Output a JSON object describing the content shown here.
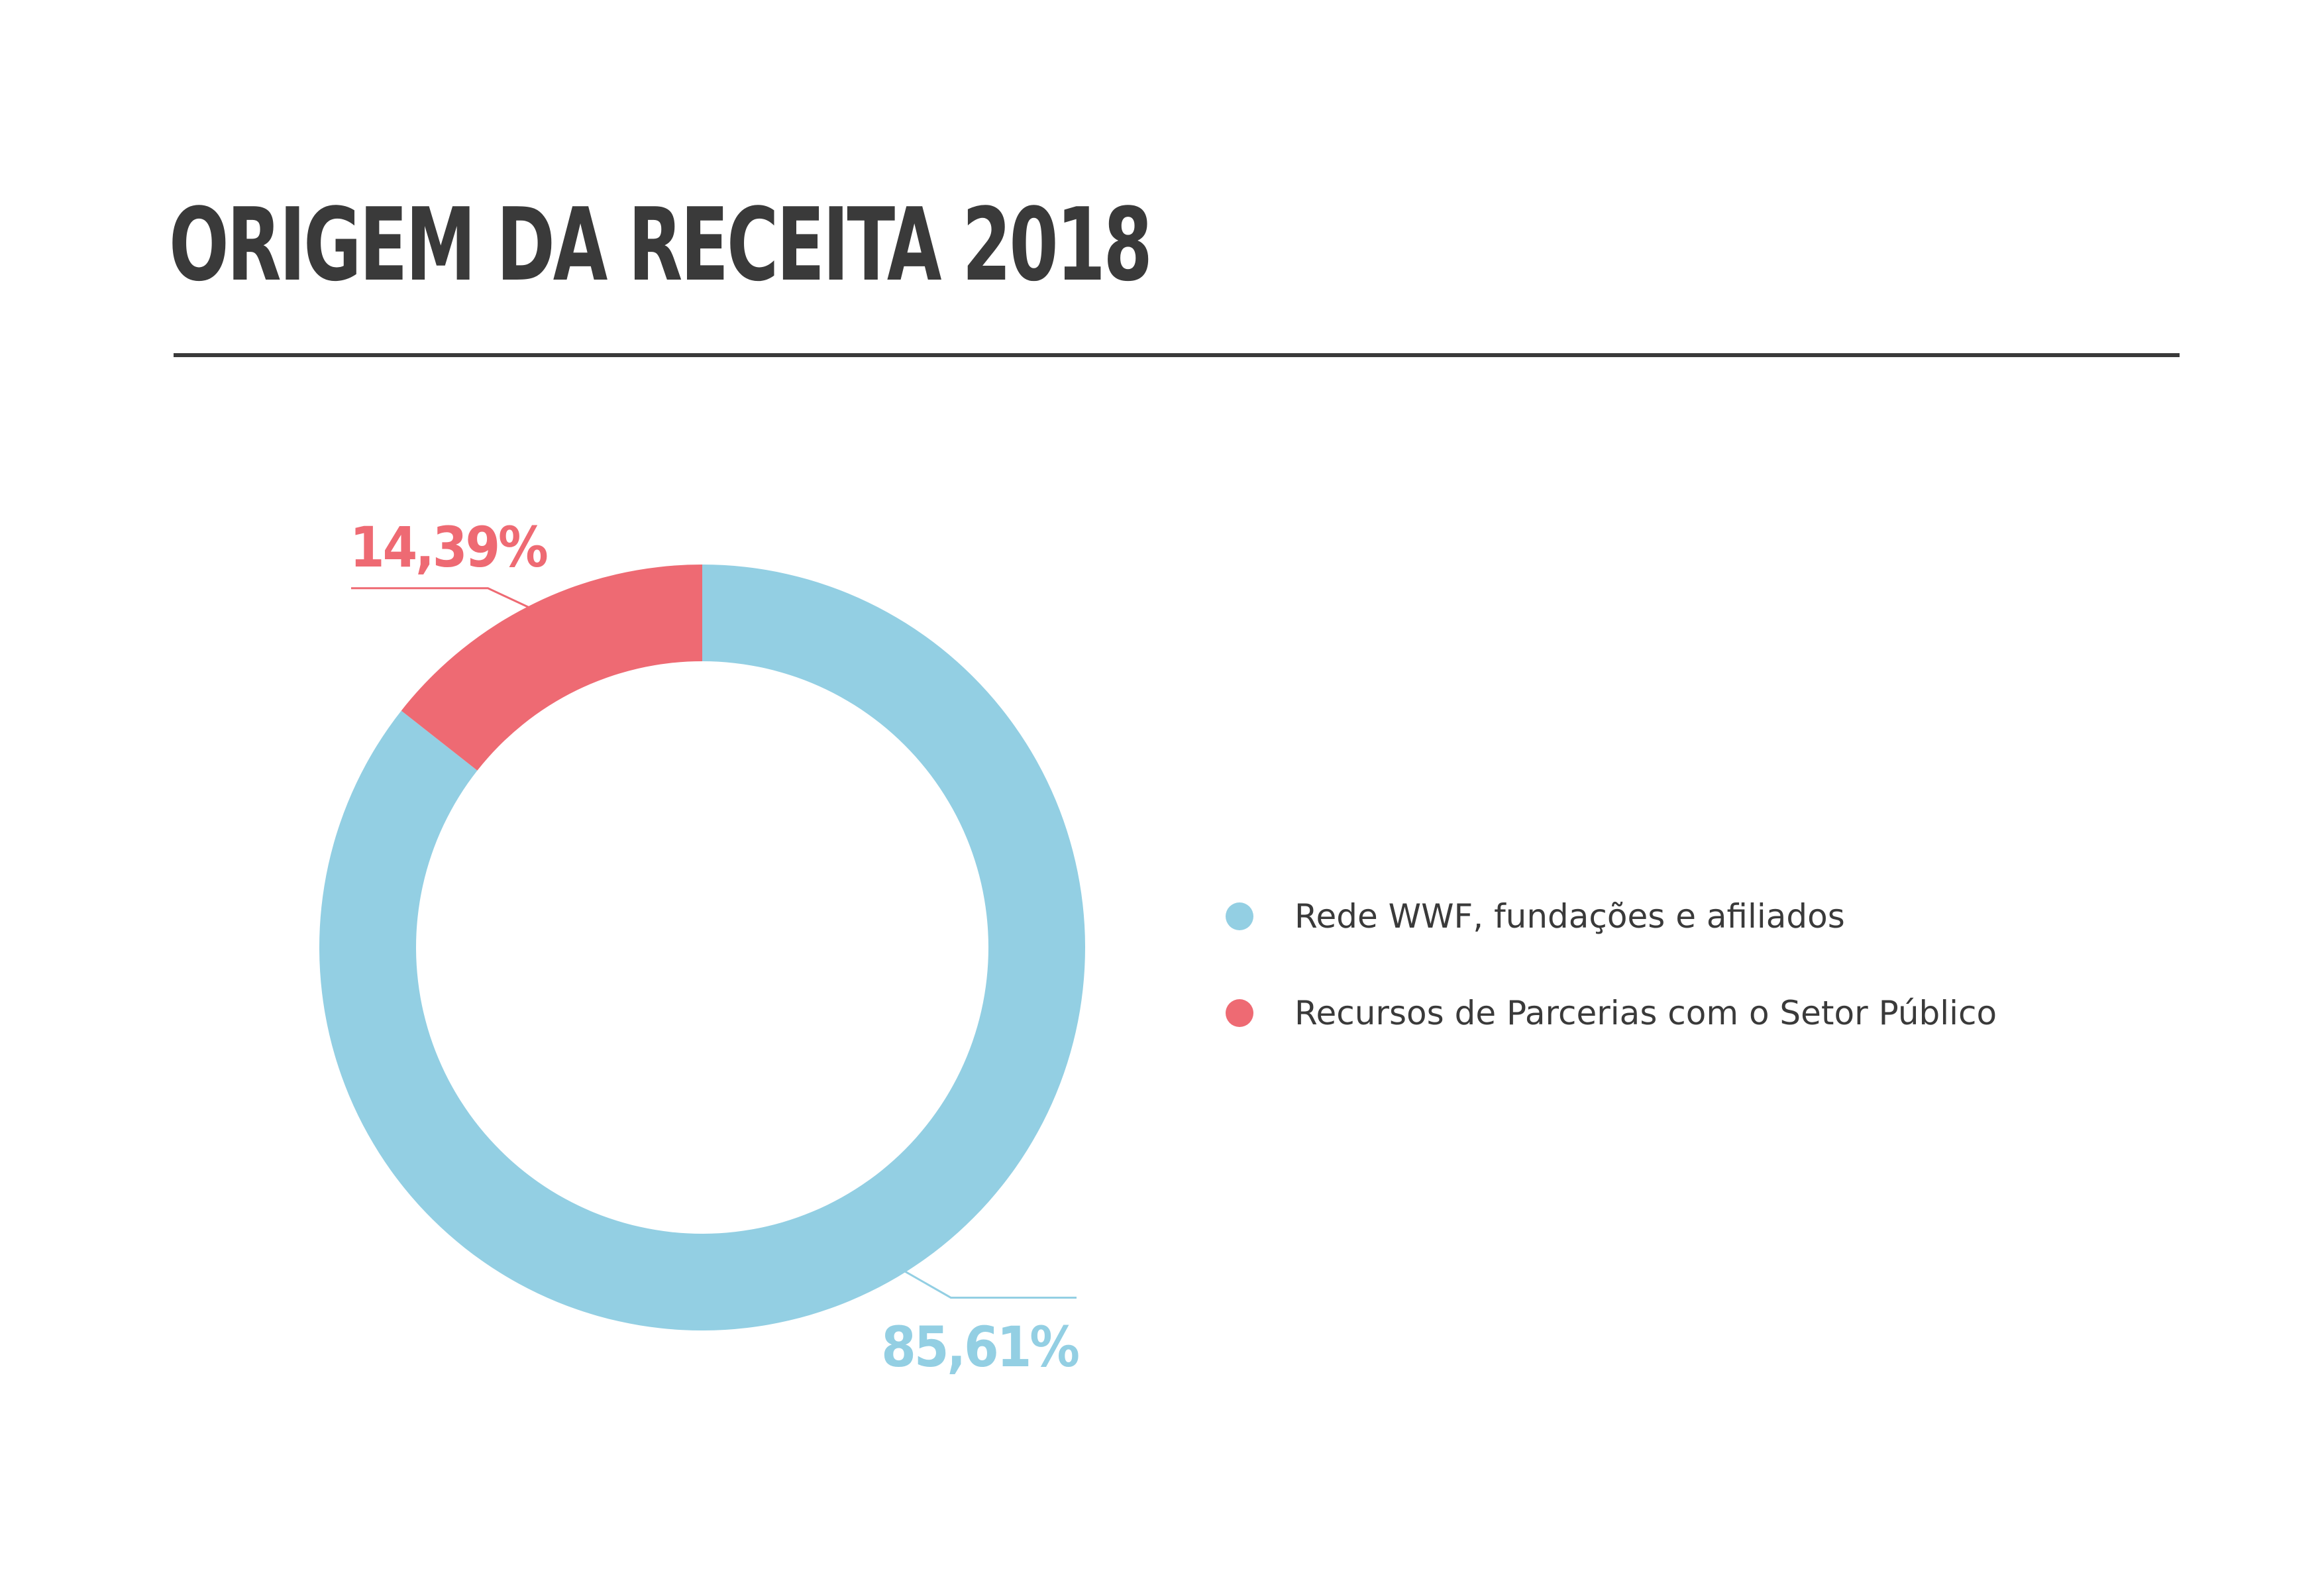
{
  "chart_data": {
    "type": "pie",
    "title": "ORIGEM DA RECEITA 2018",
    "categories": [
      "Rede WWF, fundações e afiliados",
      "Recursos de Parcerias com o Setor Público"
    ],
    "values": [
      85.61,
      14.39
    ],
    "value_labels": [
      "85,61%",
      "14,39%"
    ],
    "colors": [
      "#93cfe3",
      "#ee6a73"
    ],
    "donut": true,
    "legend_position": "right"
  },
  "colors": {
    "text": "#3a3a3a",
    "rule": "#3a3a3a",
    "background": "#ffffff"
  }
}
